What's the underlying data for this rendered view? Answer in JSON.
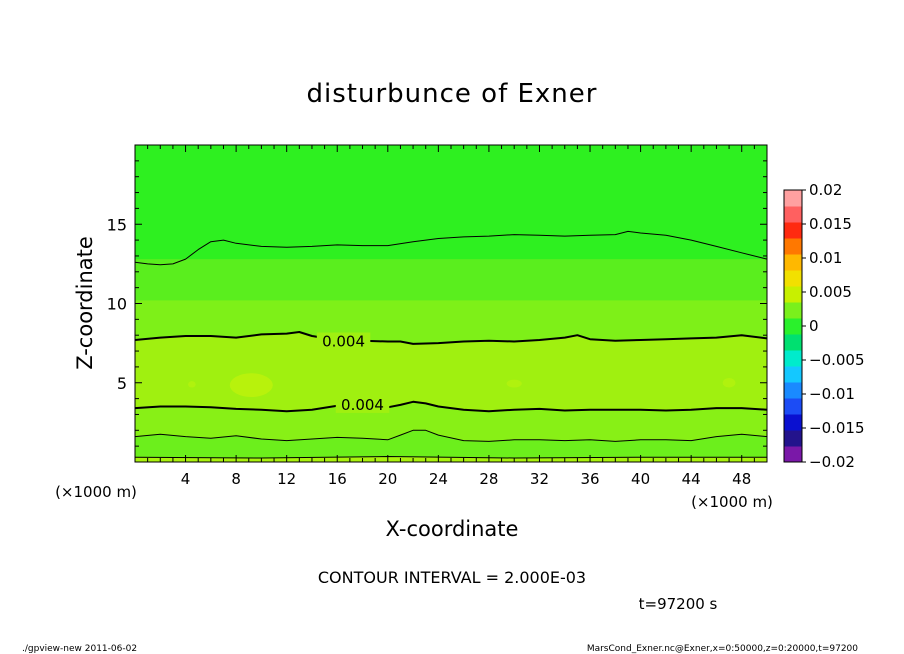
{
  "chart_data": {
    "type": "heatmap",
    "subtype": "filled-contour",
    "title": "disturbunce of Exner",
    "xlabel": "X-coordinate",
    "ylabel": "Z-coordinate",
    "x_unit": "(×1000 m)",
    "y_unit": "(×1000 m)",
    "xlim": [
      0,
      50
    ],
    "ylim": [
      0,
      20
    ],
    "x_ticks": [
      4,
      8,
      12,
      16,
      20,
      24,
      28,
      32,
      36,
      40,
      44,
      48
    ],
    "y_ticks": [
      5,
      10,
      15
    ],
    "contour_interval_text": "CONTOUR INTERVAL = 2.000E-03",
    "time_text": "t=97200 s",
    "contour_labels": [
      {
        "text": "0.004",
        "x": 16.5,
        "z": 7.6
      },
      {
        "text": "0.004",
        "x": 18,
        "z": 3.6
      }
    ],
    "colorbar": {
      "tick_labels": [
        "0.02",
        "0.015",
        "0.01",
        "0.005",
        "0",
        "-0.005",
        "-0.01",
        "-0.015",
        "-0.02"
      ],
      "levels": [
        -0.02,
        -0.0175,
        -0.015,
        -0.0125,
        -0.01,
        -0.0075,
        -0.005,
        -0.0025,
        0,
        0.0025,
        0.005,
        0.0075,
        0.01,
        0.0125,
        0.015,
        0.0175,
        0.02
      ],
      "colors": [
        "#7a18a8",
        "#23138c",
        "#0a10d0",
        "#1c4cf5",
        "#1a8aff",
        "#14c8ff",
        "#00ebcc",
        "#00e070",
        "#2af12c",
        "#7af01c",
        "#c8f000",
        "#f2e000",
        "#ffb800",
        "#ff7800",
        "#ff2a10",
        "#ff6060",
        "#ffa0a0"
      ]
    },
    "fill_bands": [
      {
        "z_range": [
          0,
          0.3
        ],
        "color": "#aaf20e"
      },
      {
        "z_range": [
          0.3,
          1.7
        ],
        "color": "#6cef1c"
      },
      {
        "z_range": [
          1.7,
          3.4
        ],
        "color": "#88f016"
      },
      {
        "z_range": [
          3.4,
          7.7
        ],
        "color": "#a0f010"
      },
      {
        "z_range": [
          7.7,
          10.2
        ],
        "color": "#7ef018"
      },
      {
        "z_range": [
          10.2,
          12.8
        ],
        "color": "#5aee1e"
      },
      {
        "z_range": [
          12.8,
          20
        ],
        "color": "#2ef020"
      }
    ],
    "contour_lines": [
      {
        "name": "line-bottom",
        "weight": "thin",
        "points": [
          [
            0,
            0.3
          ],
          [
            10,
            0.25
          ],
          [
            20,
            0.35
          ],
          [
            30,
            0.25
          ],
          [
            40,
            0.3
          ],
          [
            50,
            0.3
          ]
        ]
      },
      {
        "name": "line-1.7km",
        "weight": "thin",
        "points": [
          [
            0,
            1.6
          ],
          [
            2,
            1.75
          ],
          [
            4,
            1.6
          ],
          [
            6,
            1.5
          ],
          [
            8,
            1.65
          ],
          [
            10,
            1.45
          ],
          [
            12,
            1.35
          ],
          [
            14,
            1.45
          ],
          [
            16,
            1.55
          ],
          [
            18,
            1.5
          ],
          [
            20,
            1.4
          ],
          [
            21,
            1.7
          ],
          [
            22,
            2.0
          ],
          [
            23,
            2.0
          ],
          [
            24,
            1.7
          ],
          [
            26,
            1.35
          ],
          [
            28,
            1.3
          ],
          [
            30,
            1.4
          ],
          [
            32,
            1.4
          ],
          [
            34,
            1.35
          ],
          [
            36,
            1.4
          ],
          [
            38,
            1.3
          ],
          [
            40,
            1.4
          ],
          [
            42,
            1.4
          ],
          [
            44,
            1.35
          ],
          [
            46,
            1.6
          ],
          [
            48,
            1.75
          ],
          [
            50,
            1.6
          ]
        ]
      },
      {
        "name": "line-3.4km-0.004",
        "weight": "thick",
        "points": [
          [
            0,
            3.4
          ],
          [
            2,
            3.5
          ],
          [
            4,
            3.5
          ],
          [
            6,
            3.45
          ],
          [
            8,
            3.35
          ],
          [
            10,
            3.3
          ],
          [
            12,
            3.2
          ],
          [
            14,
            3.3
          ],
          [
            16,
            3.55
          ],
          [
            18,
            3.6
          ],
          [
            20,
            3.45
          ],
          [
            21,
            3.6
          ],
          [
            22,
            3.8
          ],
          [
            23,
            3.7
          ],
          [
            24,
            3.5
          ],
          [
            26,
            3.3
          ],
          [
            28,
            3.2
          ],
          [
            30,
            3.3
          ],
          [
            32,
            3.35
          ],
          [
            34,
            3.25
          ],
          [
            36,
            3.3
          ],
          [
            38,
            3.3
          ],
          [
            40,
            3.3
          ],
          [
            42,
            3.25
          ],
          [
            44,
            3.3
          ],
          [
            46,
            3.4
          ],
          [
            48,
            3.4
          ],
          [
            50,
            3.3
          ]
        ]
      },
      {
        "name": "line-7.7km-0.004",
        "weight": "thick",
        "points": [
          [
            0,
            7.7
          ],
          [
            2,
            7.85
          ],
          [
            4,
            7.95
          ],
          [
            6,
            7.95
          ],
          [
            8,
            7.85
          ],
          [
            10,
            8.05
          ],
          [
            12,
            8.1
          ],
          [
            13,
            8.2
          ],
          [
            14,
            7.95
          ],
          [
            16,
            7.7
          ],
          [
            18,
            7.65
          ],
          [
            20,
            7.6
          ],
          [
            21,
            7.6
          ],
          [
            22,
            7.45
          ],
          [
            24,
            7.5
          ],
          [
            26,
            7.6
          ],
          [
            28,
            7.65
          ],
          [
            30,
            7.6
          ],
          [
            32,
            7.7
          ],
          [
            34,
            7.85
          ],
          [
            35,
            8.0
          ],
          [
            36,
            7.75
          ],
          [
            38,
            7.65
          ],
          [
            40,
            7.7
          ],
          [
            42,
            7.75
          ],
          [
            44,
            7.8
          ],
          [
            46,
            7.85
          ],
          [
            48,
            8.0
          ],
          [
            50,
            7.8
          ]
        ]
      },
      {
        "name": "line-12.8km",
        "weight": "thin",
        "points": [
          [
            0,
            12.6
          ],
          [
            1,
            12.5
          ],
          [
            2,
            12.45
          ],
          [
            3,
            12.5
          ],
          [
            4,
            12.8
          ],
          [
            5,
            13.4
          ],
          [
            6,
            13.9
          ],
          [
            7,
            14.0
          ],
          [
            8,
            13.8
          ],
          [
            10,
            13.6
          ],
          [
            12,
            13.55
          ],
          [
            14,
            13.6
          ],
          [
            16,
            13.7
          ],
          [
            18,
            13.65
          ],
          [
            20,
            13.65
          ],
          [
            22,
            13.9
          ],
          [
            24,
            14.1
          ],
          [
            26,
            14.2
          ],
          [
            28,
            14.25
          ],
          [
            30,
            14.35
          ],
          [
            32,
            14.3
          ],
          [
            34,
            14.25
          ],
          [
            36,
            14.3
          ],
          [
            38,
            14.35
          ],
          [
            39,
            14.55
          ],
          [
            40,
            14.45
          ],
          [
            42,
            14.3
          ],
          [
            44,
            14.0
          ],
          [
            46,
            13.6
          ],
          [
            48,
            13.2
          ],
          [
            50,
            12.8
          ]
        ]
      }
    ],
    "blobs": [
      {
        "x": 9.2,
        "z": 4.85,
        "rx": 1.7,
        "rz": 0.75,
        "color": "#b8f20c"
      },
      {
        "x": 4.5,
        "z": 4.9,
        "rx": 0.3,
        "rz": 0.2,
        "color": "#b0f20e"
      },
      {
        "x": 30.0,
        "z": 4.95,
        "rx": 0.6,
        "rz": 0.25,
        "color": "#b0f20e"
      },
      {
        "x": 47.0,
        "z": 5.0,
        "rx": 0.5,
        "rz": 0.3,
        "color": "#b0f20e"
      }
    ]
  },
  "footer": {
    "left": "./gpview-new  2011-06-02",
    "right": "MarsCond_Exner.nc@Exner,x=0:50000,z=0:20000,t=97200"
  }
}
